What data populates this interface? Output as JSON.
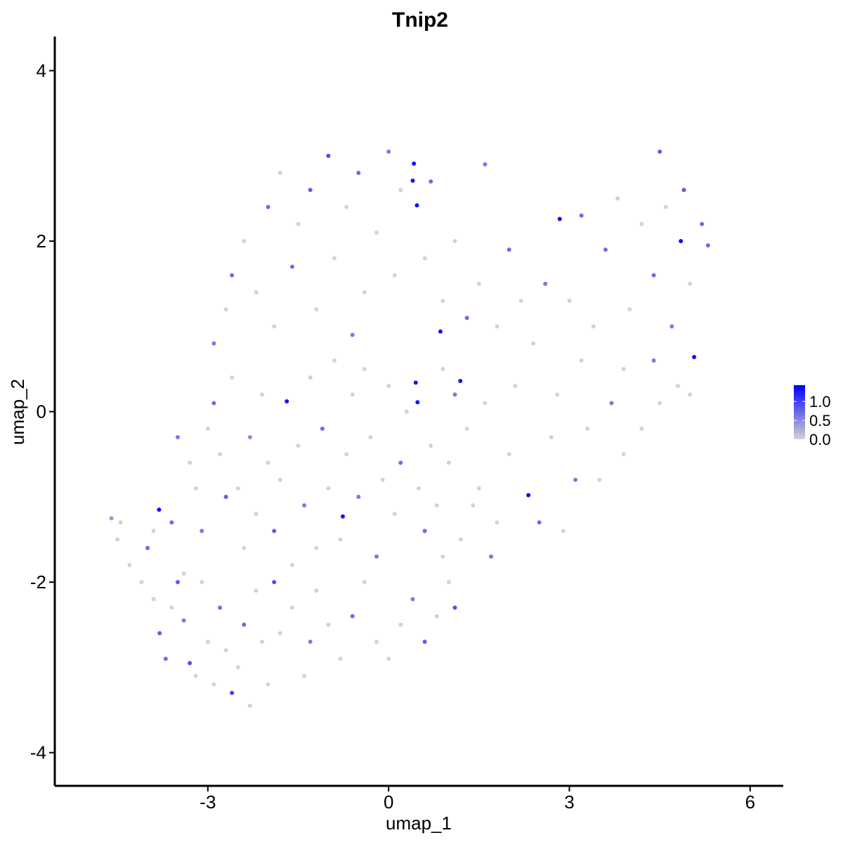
{
  "chart_data": {
    "type": "scatter",
    "title": "Tnip2",
    "x_label": "umap_1",
    "y_label": "umap_2",
    "xlim": [
      -5.54,
      6.55
    ],
    "ylim": [
      -4.39,
      4.4
    ],
    "xticks": [
      -3,
      0,
      3,
      6
    ],
    "yticks": [
      -4,
      -2,
      0,
      2,
      4
    ],
    "color_low": "#d3d3d3",
    "color_high": "#0000ff",
    "colorlim": [
      0,
      1.43
    ],
    "colorticks": [
      {
        "value": 0,
        "label": "0.0"
      },
      {
        "value": 0.5,
        "label": "0.5"
      },
      {
        "value": 1,
        "label": "1.0"
      }
    ],
    "x": [
      -4.6,
      -4.45,
      -4.5,
      -4.3,
      -4.1,
      -4.0,
      -3.9,
      -3.8,
      -3.7,
      -3.6,
      -3.5,
      -3.4,
      -3.3,
      -3.2,
      -3.1,
      -3.0,
      -2.9,
      -2.8,
      -2.7,
      -2.6,
      -2.5,
      -2.4,
      -2.3,
      -2.2,
      -2.1,
      -2.0,
      -1.9,
      -1.8,
      -1.6,
      -1.4,
      -1.3,
      -1.2,
      -1.0,
      -0.8,
      -0.6,
      -0.4,
      -0.2,
      0.0,
      0.2,
      0.4,
      0.6,
      0.8,
      1.0,
      1.1,
      0.9,
      1.2,
      -3.9,
      -3.81,
      -3.6,
      -3.4,
      -3.5,
      -3.3,
      -3.2,
      -3.1,
      -3.0,
      -2.9,
      -2.8,
      -2.7,
      -2.6,
      -2.5,
      -2.4,
      -2.3,
      -2.2,
      -2.1,
      -2.0,
      -1.9,
      -1.8,
      -1.69,
      -1.6,
      -1.5,
      -1.4,
      -1.3,
      -1.2,
      -1.1,
      -1.0,
      -0.9,
      -0.8,
      -0.76,
      -0.7,
      -0.6,
      -0.5,
      -0.4,
      -0.3,
      -0.2,
      -0.1,
      0.0,
      0.1,
      0.2,
      0.3,
      0.45,
      0.48,
      0.5,
      0.6,
      0.7,
      0.8,
      0.9,
      1.0,
      1.1,
      1.19,
      1.3,
      1.5,
      1.6,
      1.8,
      2.0,
      2.1,
      2.32,
      2.5,
      2.7,
      2.9,
      3.1,
      3.3,
      3.5,
      3.7,
      3.9,
      4.2,
      4.5,
      4.8,
      -2.9,
      -2.7,
      -2.6,
      -2.4,
      -2.2,
      -2.0,
      -1.9,
      -1.8,
      -1.6,
      -1.5,
      -1.3,
      -1.2,
      -1.0,
      -0.9,
      -0.7,
      -0.6,
      -0.5,
      -0.4,
      -0.2,
      0.0,
      0.1,
      0.2,
      0.42,
      0.4,
      0.47,
      0.6,
      0.7,
      0.86,
      0.9,
      1.1,
      1.3,
      1.5,
      1.6,
      1.8,
      2.0,
      2.2,
      2.4,
      2.6,
      2.84,
      3.0,
      3.2,
      3.4,
      3.6,
      3.8,
      4.0,
      4.2,
      4.4,
      4.5,
      4.6,
      4.7,
      4.85,
      4.9,
      5.0,
      5.07,
      5.2,
      5.3,
      5.0,
      4.4,
      3.9,
      3.2,
      2.8,
      1.7,
      1.4
    ],
    "values": [
      -1.25,
      -1.3,
      -1.5,
      -1.8,
      -2.0,
      -1.6,
      -2.2,
      -2.6,
      -2.9,
      -2.3,
      -2.0,
      -2.45,
      -2.95,
      -3.1,
      -2.0,
      -2.7,
      -3.2,
      -2.3,
      -2.8,
      -3.3,
      -3.0,
      -2.5,
      -3.45,
      -2.1,
      -2.7,
      -3.2,
      -2.0,
      -2.6,
      -2.3,
      -3.1,
      -2.7,
      -2.1,
      -2.5,
      -2.9,
      -2.4,
      -2.0,
      -2.7,
      -2.9,
      -2.5,
      -2.2,
      -2.7,
      -2.4,
      -2.0,
      -2.3,
      -1.7,
      -1.5,
      -1.4,
      -1.15,
      -1.3,
      -1.9,
      -0.3,
      -0.6,
      -0.9,
      -1.4,
      -0.2,
      0.1,
      -0.5,
      -1.0,
      0.4,
      -0.9,
      -1.6,
      -0.3,
      -1.2,
      0.2,
      -0.6,
      -1.4,
      -0.8,
      0.12,
      -1.8,
      -0.4,
      -1.1,
      0.4,
      -1.6,
      -0.2,
      -0.9,
      0.6,
      -1.5,
      -1.23,
      -0.5,
      0.2,
      -1.0,
      0.5,
      -0.3,
      -1.7,
      -0.8,
      0.3,
      -1.2,
      -0.6,
      0.0,
      0.34,
      0.11,
      -0.9,
      -1.4,
      -0.4,
      -1.1,
      0.5,
      -0.6,
      0.2,
      0.36,
      -0.2,
      -0.9,
      0.1,
      -1.3,
      -0.5,
      0.3,
      -0.98,
      -1.3,
      -0.3,
      -1.4,
      -0.8,
      -0.2,
      -0.8,
      0.1,
      -0.5,
      -0.2,
      0.1,
      0.3,
      0.8,
      1.2,
      1.6,
      2.0,
      1.4,
      2.4,
      1.0,
      2.8,
      1.7,
      2.2,
      2.6,
      1.2,
      3.0,
      1.8,
      2.4,
      0.9,
      2.8,
      1.4,
      2.1,
      3.05,
      1.6,
      2.6,
      2.91,
      2.71,
      2.42,
      1.8,
      2.7,
      0.94,
      1.3,
      2.0,
      1.1,
      1.5,
      2.9,
      1.0,
      1.9,
      1.3,
      0.8,
      1.5,
      2.26,
      1.3,
      2.3,
      1.0,
      1.9,
      2.5,
      1.2,
      2.2,
      1.6,
      3.05,
      2.4,
      1.0,
      2.0,
      2.6,
      1.5,
      0.64,
      2.2,
      1.95,
      0.2,
      0.6,
      0.5,
      0.6,
      0.2,
      -1.7,
      -1.1
    ],
    "color_values": [
      0.4,
      0,
      0,
      0,
      0,
      0.7,
      0,
      0.8,
      0.7,
      0,
      0.8,
      0.6,
      0.9,
      0,
      0,
      0,
      0,
      0.7,
      0,
      1.0,
      0,
      0.7,
      0,
      0,
      0,
      0,
      0.9,
      0,
      0,
      0,
      0.6,
      0,
      0,
      0,
      0.7,
      0,
      0,
      0,
      0,
      0.6,
      0.8,
      0,
      0,
      0.9,
      0,
      0,
      0,
      1.35,
      0.7,
      0,
      0.6,
      0,
      0,
      0.6,
      0,
      0.7,
      0,
      0.8,
      0,
      0,
      0,
      0.5,
      0,
      0,
      0,
      0.8,
      0,
      1.3,
      0,
      0,
      0.6,
      0,
      0,
      0.7,
      0,
      0,
      0,
      1.3,
      0,
      0,
      0.6,
      0,
      0,
      0.6,
      0,
      0,
      0,
      0.7,
      0,
      1.3,
      1.3,
      0,
      0.7,
      0,
      0,
      0,
      0,
      0.6,
      1.3,
      0,
      0,
      0,
      0,
      0,
      0,
      1.35,
      0.7,
      0,
      0,
      0.6,
      0,
      0,
      0.6,
      0,
      0,
      0,
      0,
      0.6,
      0,
      0.7,
      0,
      0,
      0.7,
      0,
      0,
      0.7,
      0,
      0.8,
      0,
      0.9,
      0,
      0,
      0.6,
      0.7,
      0,
      0,
      0.6,
      0,
      0,
      1.35,
      1.3,
      1.3,
      0,
      0.7,
      1.3,
      0,
      0,
      0.7,
      0,
      0.6,
      0,
      0.7,
      0,
      0,
      0.6,
      1.35,
      0,
      0.7,
      0,
      0.7,
      0,
      0,
      0,
      0.7,
      0.8,
      0,
      0.6,
      1.35,
      0.8,
      0,
      1.3,
      0.7,
      0.7,
      0,
      0.6,
      0,
      0,
      0,
      0.6,
      0
    ]
  }
}
